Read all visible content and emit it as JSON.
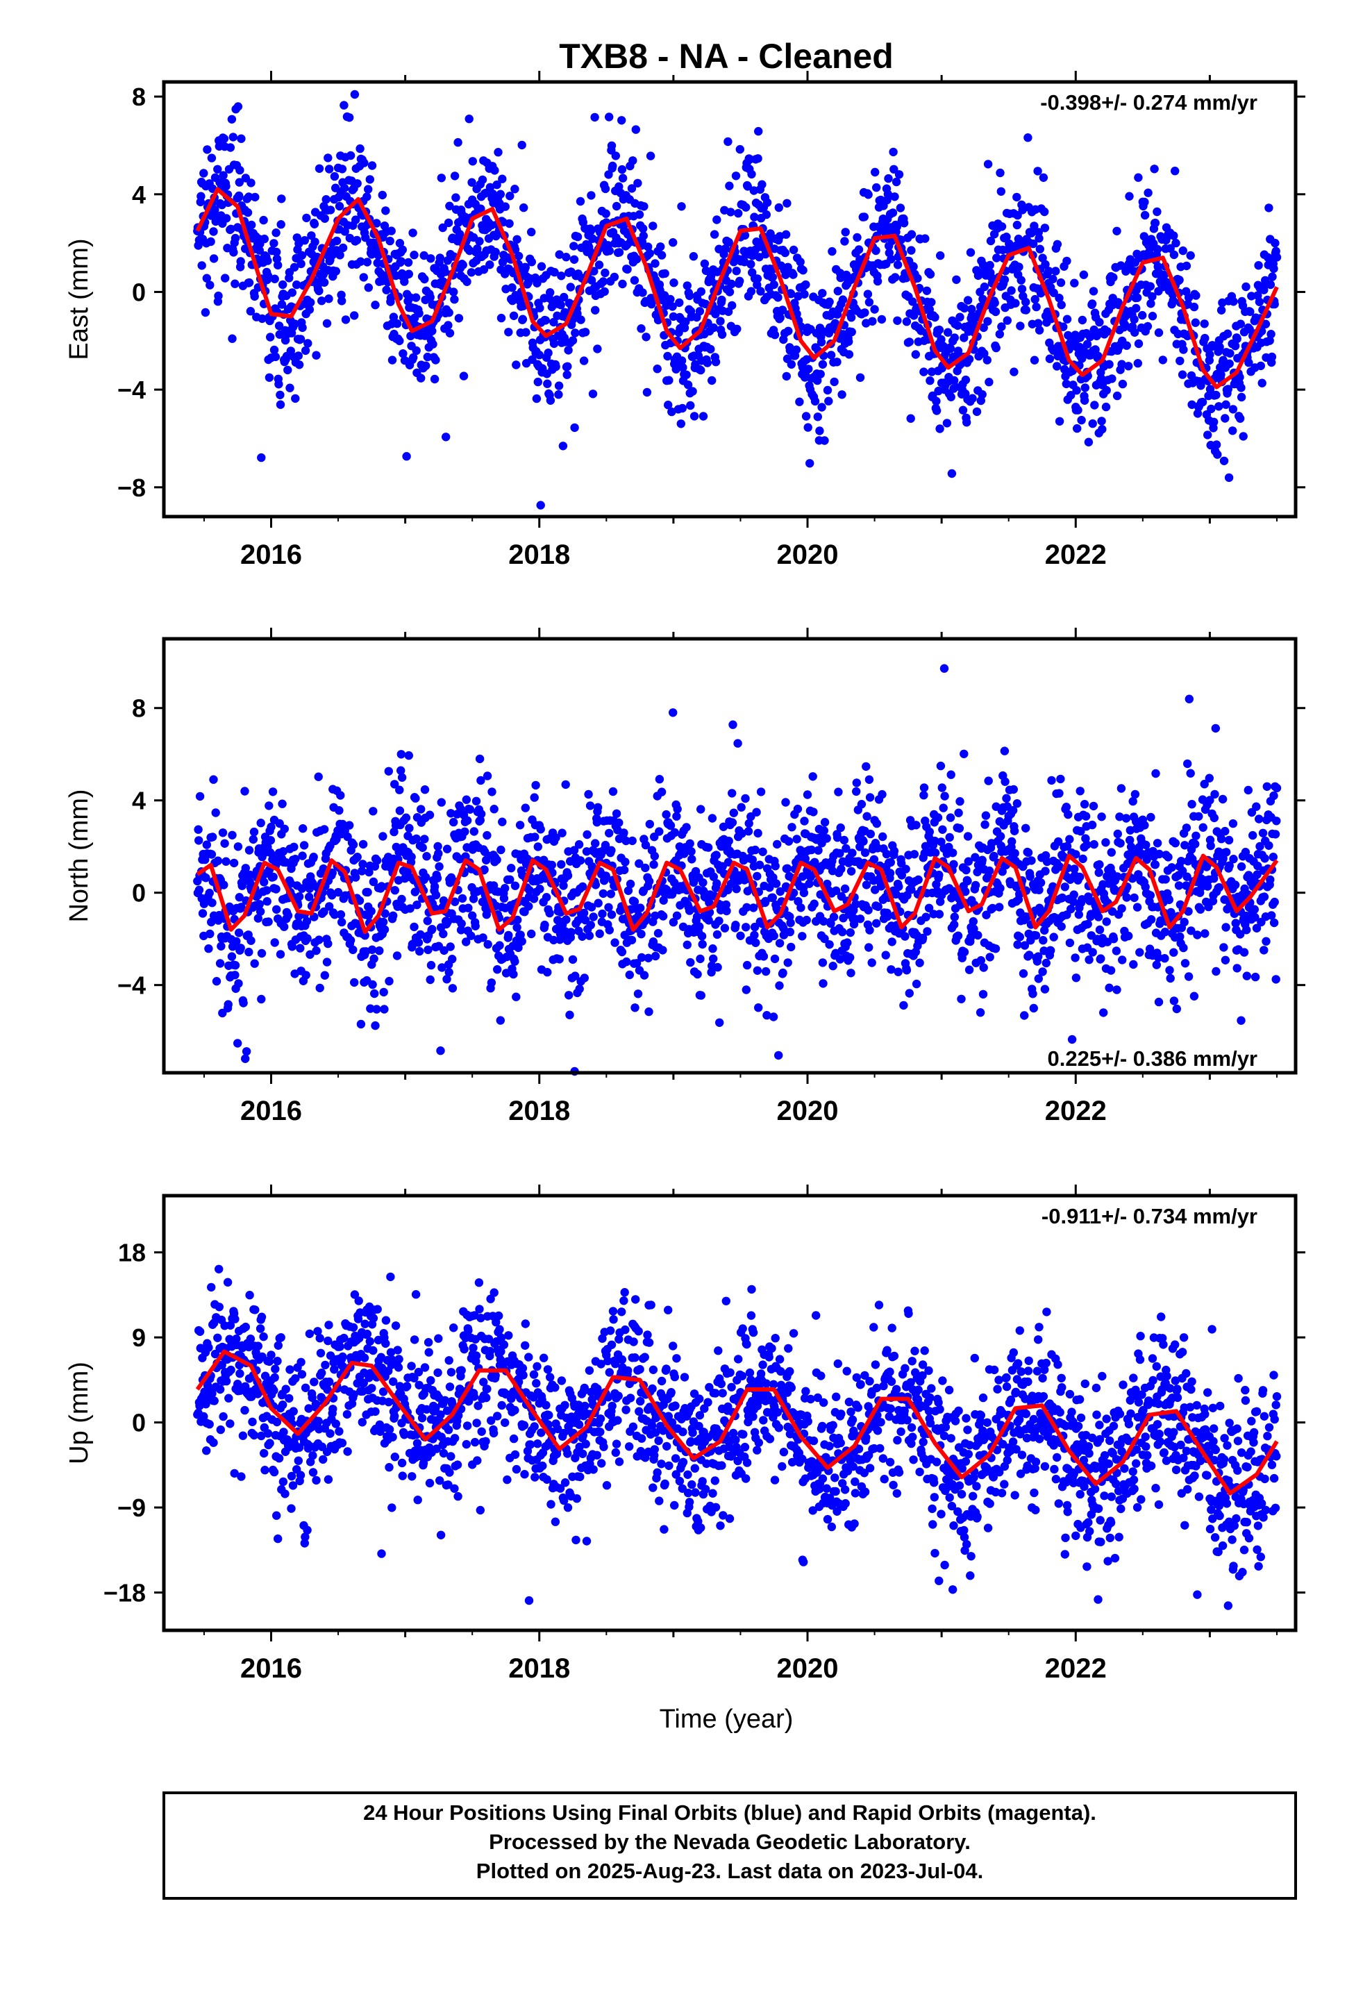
{
  "title": "TXB8  - NA - Cleaned",
  "xlabel": "Time (year)",
  "footer": {
    "line1": "24 Hour Positions Using Final Orbits (blue) and Rapid Orbits (magenta).",
    "line2": "Processed by the Nevada Geodetic Laboratory.",
    "line3": "Plotted on 2025-Aug-23. Last data on 2023-Jul-04."
  },
  "colors": {
    "final_orbits": "#0000ff",
    "fit": "#ff0000",
    "frame": "#000000"
  },
  "chart_data": [
    {
      "type": "scatter",
      "ylabel": "East (mm)",
      "rate_label": "-0.398+/- 0.274 mm/yr",
      "rate_position": "top-right",
      "xlim": [
        2015.2,
        2023.64
      ],
      "ylim": [
        -9.2,
        8.6
      ],
      "yticks": [
        -8,
        -4,
        0,
        4,
        8
      ],
      "xticks": [
        2016,
        2018,
        2020,
        2022
      ],
      "series": [
        {
          "kind": "model",
          "color": "#ff0000",
          "x": [
            2015.45,
            2015.6,
            2015.75,
            2015.9,
            2016.0,
            2016.15,
            2016.3,
            2016.5,
            2016.65,
            2016.8,
            2016.95,
            2017.05,
            2017.2,
            2017.35,
            2017.5,
            2017.65,
            2017.8,
            2017.95,
            2018.05,
            2018.2,
            2018.35,
            2018.5,
            2018.65,
            2018.8,
            2018.95,
            2019.05,
            2019.2,
            2019.35,
            2019.5,
            2019.65,
            2019.8,
            2019.95,
            2020.05,
            2020.2,
            2020.35,
            2020.5,
            2020.65,
            2020.8,
            2020.95,
            2021.05,
            2021.2,
            2021.35,
            2021.5,
            2021.65,
            2021.8,
            2021.95,
            2022.05,
            2022.2,
            2022.35,
            2022.5,
            2022.65,
            2022.8,
            2022.95,
            2023.05,
            2023.2,
            2023.35,
            2023.5
          ],
          "values": [
            2.5,
            4.2,
            3.5,
            0.8,
            -0.9,
            -1.0,
            0.5,
            3.0,
            3.8,
            2.2,
            -0.5,
            -1.6,
            -1.2,
            0.8,
            3.0,
            3.4,
            1.5,
            -1.2,
            -1.8,
            -1.3,
            0.6,
            2.7,
            3.0,
            1.0,
            -1.6,
            -2.3,
            -1.6,
            0.5,
            2.5,
            2.6,
            0.5,
            -2.0,
            -2.7,
            -2.0,
            0.2,
            2.2,
            2.3,
            0.2,
            -2.4,
            -3.1,
            -2.5,
            -0.3,
            1.5,
            1.8,
            -0.3,
            -2.8,
            -3.4,
            -2.8,
            -0.6,
            1.2,
            1.4,
            -0.6,
            -3.2,
            -3.9,
            -3.3,
            -1.6,
            0.2
          ]
        }
      ]
    },
    {
      "type": "scatter",
      "ylabel": "North (mm)",
      "rate_label": "0.225+/- 0.386 mm/yr",
      "rate_position": "bottom-right",
      "xlim": [
        2015.2,
        2023.64
      ],
      "ylim": [
        -7.8,
        11.0
      ],
      "yticks": [
        -4,
        0,
        4,
        8
      ],
      "xticks": [
        2016,
        2018,
        2020,
        2022
      ],
      "series": [
        {
          "kind": "model",
          "color": "#ff0000",
          "x": [
            2015.45,
            2015.55,
            2015.7,
            2015.8,
            2015.95,
            2016.05,
            2016.2,
            2016.3,
            2016.45,
            2016.55,
            2016.7,
            2016.8,
            2016.95,
            2017.05,
            2017.2,
            2017.3,
            2017.45,
            2017.55,
            2017.7,
            2017.8,
            2017.95,
            2018.05,
            2018.2,
            2018.3,
            2018.45,
            2018.55,
            2018.7,
            2018.8,
            2018.95,
            2019.05,
            2019.2,
            2019.3,
            2019.45,
            2019.55,
            2019.7,
            2019.8,
            2019.95,
            2020.05,
            2020.2,
            2020.3,
            2020.45,
            2020.55,
            2020.7,
            2020.8,
            2020.95,
            2021.05,
            2021.2,
            2021.3,
            2021.45,
            2021.55,
            2021.7,
            2021.8,
            2021.95,
            2022.05,
            2022.2,
            2022.3,
            2022.45,
            2022.55,
            2022.7,
            2022.8,
            2022.95,
            2023.05,
            2023.2,
            2023.3,
            2023.5
          ],
          "values": [
            0.8,
            1.2,
            -1.6,
            -1.0,
            1.3,
            1.0,
            -0.8,
            -0.9,
            1.4,
            0.9,
            -1.7,
            -1.0,
            1.3,
            1.1,
            -0.9,
            -0.8,
            1.4,
            1.0,
            -1.6,
            -1.1,
            1.4,
            1.0,
            -0.9,
            -0.7,
            1.3,
            1.0,
            -1.6,
            -0.9,
            1.3,
            1.0,
            -0.8,
            -0.6,
            1.3,
            1.0,
            -1.5,
            -0.9,
            1.3,
            1.0,
            -0.8,
            -0.5,
            1.3,
            1.0,
            -1.5,
            -0.9,
            1.5,
            1.1,
            -0.8,
            -0.5,
            1.5,
            1.1,
            -1.5,
            -0.8,
            1.6,
            1.1,
            -0.8,
            -0.4,
            1.5,
            1.0,
            -1.5,
            -0.8,
            1.6,
            1.1,
            -0.8,
            -0.2,
            1.4
          ]
        }
      ]
    },
    {
      "type": "scatter",
      "ylabel": "Up (mm)",
      "rate_label": "-0.911+/- 0.734 mm/yr",
      "rate_position": "top-right",
      "xlim": [
        2015.2,
        2023.64
      ],
      "ylim": [
        -22,
        24
      ],
      "yticks": [
        -18,
        -9,
        0,
        9,
        18
      ],
      "xticks": [
        2016,
        2018,
        2020,
        2022
      ],
      "series": [
        {
          "kind": "model",
          "color": "#ff0000",
          "x": [
            2015.45,
            2015.65,
            2015.85,
            2016.0,
            2016.2,
            2016.4,
            2016.6,
            2016.75,
            2016.95,
            2017.15,
            2017.35,
            2017.55,
            2017.75,
            2017.95,
            2018.15,
            2018.35,
            2018.55,
            2018.75,
            2018.95,
            2019.15,
            2019.35,
            2019.55,
            2019.75,
            2019.95,
            2020.15,
            2020.35,
            2020.55,
            2020.75,
            2020.95,
            2021.15,
            2021.35,
            2021.55,
            2021.75,
            2021.95,
            2022.15,
            2022.35,
            2022.55,
            2022.75,
            2022.95,
            2023.15,
            2023.35,
            2023.5
          ],
          "values": [
            3.5,
            7.5,
            6.0,
            1.5,
            -1.2,
            2.0,
            6.3,
            6.0,
            2.0,
            -1.8,
            0.8,
            5.5,
            5.5,
            1.2,
            -2.8,
            -0.5,
            4.8,
            4.5,
            -0.3,
            -3.8,
            -2.0,
            3.5,
            3.5,
            -1.5,
            -4.8,
            -2.5,
            2.5,
            2.5,
            -2.2,
            -5.8,
            -3.5,
            1.5,
            1.8,
            -3.0,
            -6.5,
            -4.2,
            0.8,
            1.2,
            -3.2,
            -7.5,
            -5.5,
            -2.0
          ]
        }
      ]
    }
  ]
}
